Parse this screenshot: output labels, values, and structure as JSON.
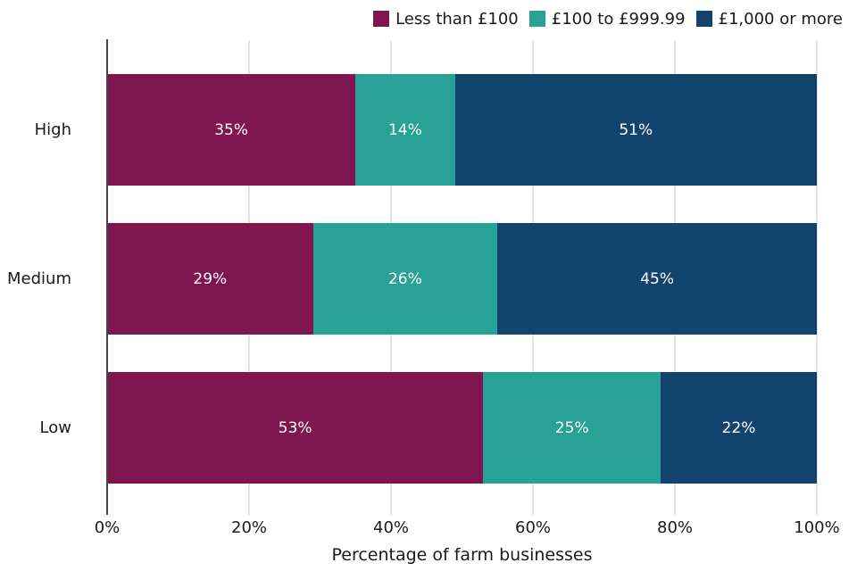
{
  "chart_data": {
    "type": "bar",
    "orientation": "horizontal",
    "stacked": true,
    "title": "",
    "xlabel": "Percentage of farm businesses",
    "ylabel": "",
    "categories": [
      "High",
      "Medium",
      "Low"
    ],
    "series": [
      {
        "name": "Less than £100",
        "color": "#801650",
        "values": [
          35,
          29,
          53
        ]
      },
      {
        "name": "£100 to £999.99",
        "color": "#28A197",
        "values": [
          14,
          26,
          25
        ]
      },
      {
        "name": "£1,000 or more",
        "color": "#12436D",
        "values": [
          51,
          45,
          22
        ]
      }
    ],
    "xlim": [
      0,
      100
    ],
    "x_ticks": [
      "0%",
      "20%",
      "40%",
      "60%",
      "80%",
      "100%"
    ],
    "x_tick_values": [
      0,
      20,
      40,
      60,
      80,
      100
    ],
    "grid": true,
    "legend_position": "top-right",
    "data_label_suffix": "%",
    "colors": {
      "background": "#ffffff",
      "axis_line": "#454545",
      "gridline": "#e3e3e3",
      "text": "#1a1a1a",
      "bar_label": "#ffffff"
    }
  }
}
